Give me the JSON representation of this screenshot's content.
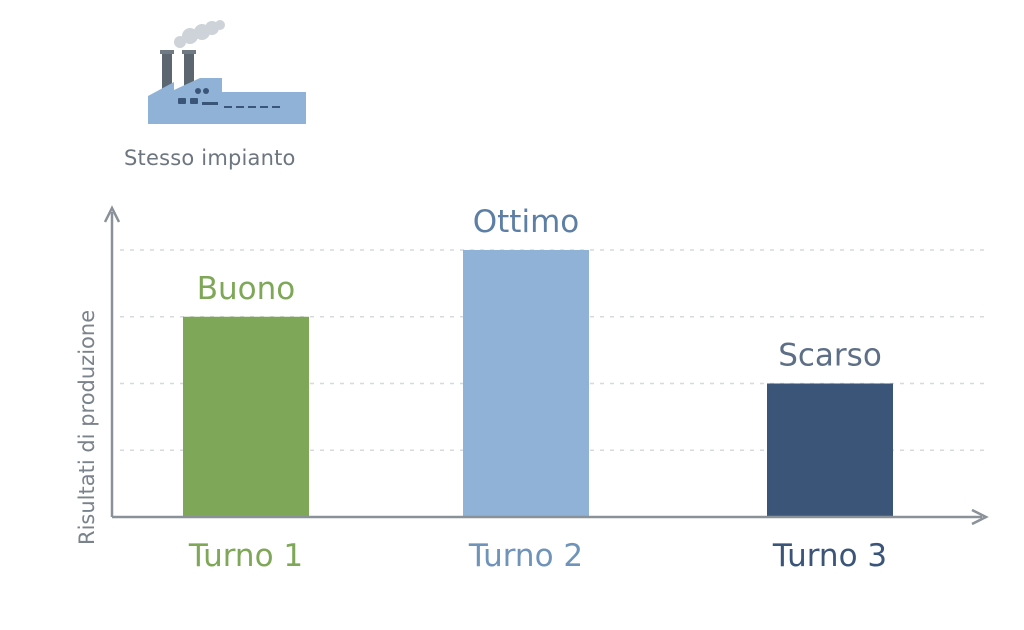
{
  "header": {
    "plant_label": "Stesso impianto",
    "icon": "factory-icon"
  },
  "colors": {
    "turno1": "#7ea857",
    "turno2": "#8fb2d6",
    "turno3": "#3b5579",
    "factory": "#8fb2d6",
    "axis": "#8a9199",
    "grid": "#d6d9dd"
  },
  "chart_data": {
    "type": "bar",
    "title": "",
    "xlabel": "",
    "ylabel": "Risultati di produzione",
    "categories": [
      "Turno 1",
      "Turno 2",
      "Turno 3"
    ],
    "values": [
      3,
      4,
      2
    ],
    "value_labels": [
      "Buono",
      "Ottimo",
      "Scarso"
    ],
    "ylim": [
      0,
      4
    ],
    "y_ticks_shown": false,
    "grid": true,
    "legend": "none"
  }
}
